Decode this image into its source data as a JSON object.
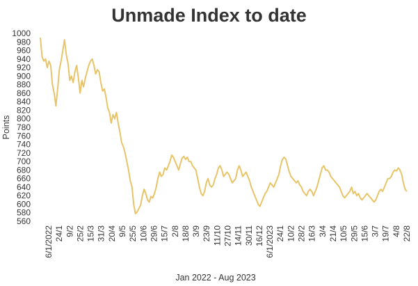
{
  "chart_data": {
    "type": "line",
    "title": "Unmade Index to date",
    "xlabel": "Jan 2022 - Aug 2023",
    "ylabel": "Points",
    "ylim": [
      560,
      1000
    ],
    "yticks": [
      1000,
      980,
      960,
      940,
      920,
      900,
      880,
      860,
      840,
      820,
      800,
      780,
      760,
      740,
      720,
      700,
      680,
      660,
      640,
      620,
      600,
      580,
      560
    ],
    "x_tick_labels": [
      "6/1/2022",
      "24/1",
      "9/2",
      "25/2",
      "15/3",
      "31/3",
      "20/4",
      "9/5",
      "25/5",
      "10/6",
      "29/6",
      "15/7",
      "2/8",
      "18/8",
      "3/9",
      "23/9",
      "11/10",
      "27/10",
      "14/11",
      "30/11",
      "16/12",
      "6/1/2023",
      "24/1",
      "10/2",
      "28/2",
      "16/3",
      "3/4",
      "21/4",
      "10/5",
      "29/5",
      "15/6",
      "3/7",
      "19/7",
      "4/8",
      "22/8"
    ],
    "line_color": "#e8c468",
    "grid": false,
    "series": [
      {
        "values": [
          990,
          945,
          935,
          940,
          920,
          935,
          925,
          880,
          860,
          830,
          870,
          915,
          935,
          960,
          985,
          950,
          930,
          890,
          900,
          885,
          910,
          925,
          895,
          860,
          890,
          875,
          895,
          910,
          925,
          935,
          940,
          925,
          905,
          915,
          910,
          885,
          865,
          870,
          850,
          825,
          815,
          790,
          810,
          800,
          815,
          790,
          770,
          745,
          735,
          720,
          700,
          680,
          655,
          640,
          600,
          578,
          582,
          590,
          598,
          620,
          635,
          625,
          610,
          605,
          618,
          615,
          625,
          640,
          660,
          675,
          665,
          670,
          685,
          680,
          690,
          700,
          715,
          710,
          700,
          690,
          680,
          695,
          708,
          712,
          705,
          710,
          700,
          700,
          690,
          685,
          680,
          660,
          640,
          625,
          620,
          630,
          650,
          660,
          645,
          640,
          645,
          660,
          670,
          685,
          690,
          680,
          665,
          670,
          675,
          670,
          660,
          650,
          655,
          660,
          680,
          690,
          680,
          665,
          670,
          675,
          665,
          655,
          640,
          630,
          620,
          610,
          600,
          595,
          605,
          615,
          625,
          630,
          640,
          650,
          645,
          640,
          650,
          660,
          670,
          690,
          705,
          710,
          705,
          690,
          675,
          665,
          660,
          655,
          650,
          655,
          645,
          640,
          630,
          625,
          620,
          630,
          635,
          630,
          620,
          630,
          640,
          655,
          670,
          685,
          690,
          680,
          680,
          675,
          665,
          660,
          655,
          650,
          645,
          640,
          630,
          620,
          615,
          620,
          625,
          630,
          640,
          625,
          630,
          620,
          625,
          615,
          610,
          615,
          620,
          625,
          620,
          615,
          610,
          605,
          610,
          620,
          630,
          635,
          630,
          640,
          650,
          660,
          660,
          665,
          675,
          680,
          678,
          685,
          680,
          670,
          650,
          635,
          630
        ]
      }
    ]
  }
}
